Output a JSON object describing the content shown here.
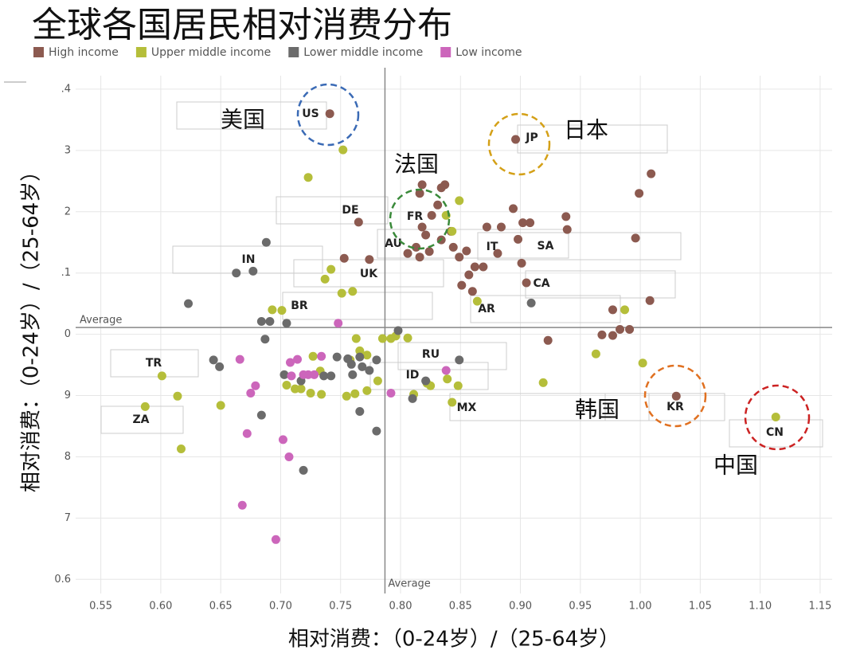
{
  "chart_data": {
    "type": "scatter",
    "title": "全球各国居民相对消费分布",
    "x_label": "相对消费：（0-24岁）/（25-64岁）",
    "y_label": "相对消费：（0-24岁）/（25-64岁）",
    "xlim": [
      0.529,
      1.16
    ],
    "ylim": [
      0.577,
      1.422
    ],
    "xticks": [
      {
        "value": 0.55,
        "label": "0.55"
      },
      {
        "value": 0.6,
        "label": "0.60"
      },
      {
        "value": 0.65,
        "label": "0.65"
      },
      {
        "value": 0.7,
        "label": "0.70"
      },
      {
        "value": 0.75,
        "label": "0.75"
      },
      {
        "value": 0.8,
        "label": "0.80"
      },
      {
        "value": 0.85,
        "label": "0.85"
      },
      {
        "value": 0.9,
        "label": "0.90"
      },
      {
        "value": 0.95,
        "label": "0.95"
      },
      {
        "value": 1.0,
        "label": "1.00"
      },
      {
        "value": 1.05,
        "label": "1.05"
      },
      {
        "value": 1.1,
        "label": "1.10"
      },
      {
        "value": 1.15,
        "label": "1.15"
      }
    ],
    "yticks": [
      {
        "value": 1.4,
        "label": ".4"
      },
      {
        "value": 1.3,
        "label": "3"
      },
      {
        "value": 1.2,
        "label": "2"
      },
      {
        "value": 1.1,
        "label": ".1"
      },
      {
        "value": 1.0,
        "label": "0"
      },
      {
        "value": 0.9,
        "label": "9"
      },
      {
        "value": 0.8,
        "label": "8"
      },
      {
        "value": 0.7,
        "label": "7"
      },
      0.6
    ],
    "grid": true,
    "averages": {
      "x": {
        "value": 0.787,
        "label": "Average"
      },
      "y": {
        "value": 1.011,
        "label": "Average"
      }
    },
    "country_labels": [
      "US",
      "JP",
      "DE",
      "FR",
      "AU",
      "IT",
      "SA",
      "IN",
      "UK",
      "CA",
      "BR",
      "AR",
      "TR",
      "RU",
      "ID",
      "ZA",
      "MX",
      "KR",
      "CN"
    ],
    "callouts": [
      "美国",
      "日本",
      "法国",
      "韩国",
      "中国"
    ],
    "series": [
      {
        "name": "High income",
        "color": "#8c5a50",
        "x": [
          0.741,
          0.896,
          0.765,
          0.818,
          0.837,
          0.834,
          0.816,
          0.831,
          0.826,
          0.818,
          0.821,
          0.813,
          0.806,
          0.816,
          0.824,
          0.834,
          0.842,
          0.844,
          0.849,
          0.855,
          0.862,
          0.869,
          0.857,
          0.851,
          0.86,
          0.881,
          0.872,
          0.884,
          0.894,
          0.902,
          0.908,
          0.898,
          0.901,
          0.905,
          0.938,
          0.939,
          1.009,
          0.999,
          0.996,
          1.008,
          0.977,
          0.968,
          0.977,
          0.983,
          0.991,
          0.923,
          0.753,
          0.774,
          1.03
        ],
        "values": [
          1.36,
          1.318,
          1.183,
          1.244,
          1.244,
          1.239,
          1.23,
          1.211,
          1.194,
          1.175,
          1.162,
          1.142,
          1.132,
          1.126,
          1.135,
          1.154,
          1.168,
          1.142,
          1.126,
          1.136,
          1.11,
          1.11,
          1.097,
          1.08,
          1.07,
          1.132,
          1.175,
          1.175,
          1.205,
          1.182,
          1.182,
          1.155,
          1.116,
          1.084,
          1.192,
          1.171,
          1.262,
          1.23,
          1.157,
          1.055,
          1.04,
          0.999,
          0.998,
          1.008,
          1.008,
          0.99,
          1.124,
          1.122,
          0.899
        ]
      },
      {
        "name": "Upper middle income",
        "color": "#b5be3a",
        "x": [
          0.752,
          0.723,
          0.849,
          0.838,
          0.843,
          0.742,
          0.737,
          0.76,
          0.751,
          0.693,
          0.701,
          0.864,
          0.987,
          0.763,
          0.785,
          0.792,
          0.796,
          0.806,
          0.766,
          0.772,
          0.758,
          0.963,
          1.002,
          0.601,
          0.727,
          0.733,
          0.705,
          0.712,
          0.717,
          0.725,
          0.734,
          0.755,
          0.762,
          0.772,
          0.781,
          0.811,
          0.822,
          0.825,
          0.839,
          0.848,
          0.843,
          0.919,
          0.614,
          0.587,
          0.65,
          0.617,
          1.113
        ],
        "values": [
          1.301,
          1.256,
          1.218,
          1.194,
          1.168,
          1.106,
          1.09,
          1.07,
          1.067,
          1.04,
          1.039,
          1.054,
          1.04,
          0.993,
          0.993,
          0.993,
          0.997,
          0.994,
          0.973,
          0.966,
          0.958,
          0.968,
          0.953,
          0.932,
          0.964,
          0.94,
          0.917,
          0.911,
          0.911,
          0.904,
          0.902,
          0.899,
          0.903,
          0.908,
          0.924,
          0.902,
          0.92,
          0.916,
          0.927,
          0.916,
          0.889,
          0.921,
          0.899,
          0.882,
          0.884,
          0.813,
          0.865
        ]
      },
      {
        "name": "Lower middle income",
        "color": "#6b6b6b",
        "x": [
          0.688,
          0.663,
          0.677,
          0.623,
          0.684,
          0.691,
          0.705,
          0.687,
          0.798,
          0.909,
          0.849,
          0.644,
          0.649,
          0.703,
          0.717,
          0.736,
          0.742,
          0.747,
          0.756,
          0.759,
          0.766,
          0.768,
          0.774,
          0.78,
          0.76,
          0.766,
          0.81,
          0.821,
          0.684,
          0.78,
          0.719
        ],
        "values": [
          1.15,
          1.1,
          1.103,
          1.05,
          1.021,
          1.021,
          1.018,
          0.992,
          1.006,
          1.051,
          0.958,
          0.958,
          0.947,
          0.934,
          0.924,
          0.932,
          0.932,
          0.963,
          0.96,
          0.951,
          0.963,
          0.947,
          0.941,
          0.958,
          0.934,
          0.874,
          0.895,
          0.924,
          0.868,
          0.842,
          0.778
        ]
      },
      {
        "name": "Low income",
        "color": "#cc66bb",
        "x": [
          0.748,
          0.666,
          0.734,
          0.714,
          0.708,
          0.719,
          0.723,
          0.728,
          0.709,
          0.679,
          0.675,
          0.838,
          0.792,
          0.672,
          0.702,
          0.707,
          0.668,
          0.696
        ],
        "values": [
          1.018,
          0.959,
          0.964,
          0.959,
          0.954,
          0.934,
          0.934,
          0.934,
          0.932,
          0.916,
          0.904,
          0.941,
          0.904,
          0.838,
          0.828,
          0.8,
          0.721,
          0.665
        ]
      }
    ]
  }
}
